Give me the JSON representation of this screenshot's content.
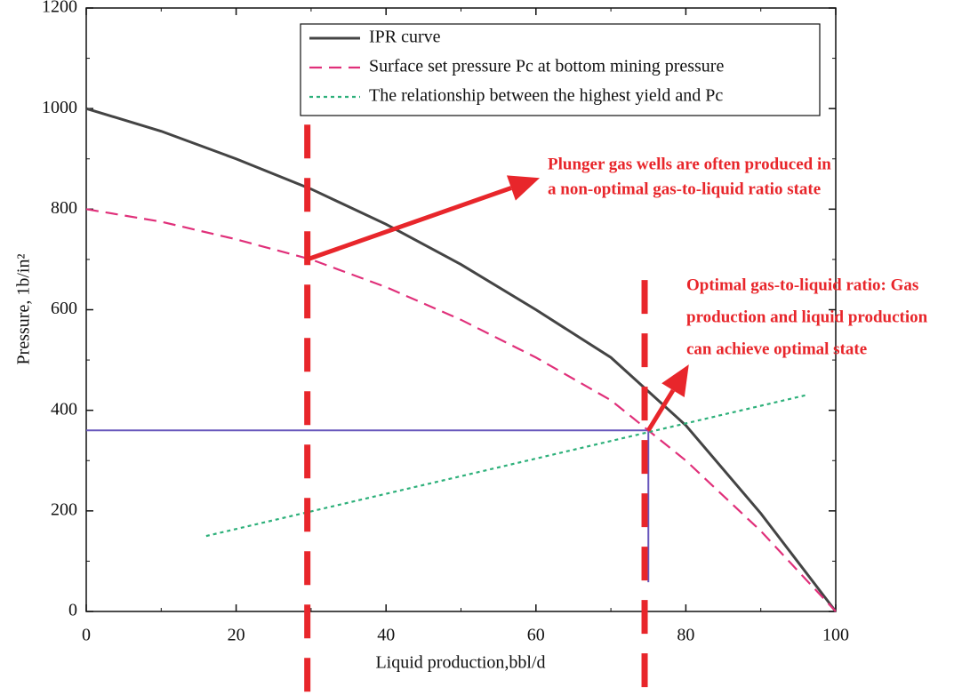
{
  "chart_data": {
    "type": "line",
    "x_label": "Liquid production,bbl/d",
    "y_label": "Pressure, 1b/in²",
    "xlim": [
      0,
      100
    ],
    "xticks": [
      0,
      20,
      40,
      60,
      80,
      100
    ],
    "ylim": [
      0,
      1200
    ],
    "yticks": [
      0,
      200,
      400,
      600,
      800,
      1000,
      1200
    ],
    "series": [
      {
        "name": "IPR curve",
        "color": "#444444",
        "style": "solid",
        "x": [
          0,
          10,
          20,
          30,
          40,
          50,
          60,
          70,
          80,
          90,
          100
        ],
        "values": [
          1000,
          955,
          900,
          840,
          770,
          690,
          600,
          505,
          370,
          195,
          0
        ]
      },
      {
        "name": "Surface set pressure Pc at bottom mining pressure",
        "color": "#e0307a",
        "style": "dashed",
        "x": [
          0,
          10,
          20,
          30,
          40,
          50,
          60,
          70,
          75,
          80,
          90,
          100
        ],
        "values": [
          800,
          775,
          740,
          700,
          645,
          580,
          505,
          420,
          360,
          300,
          160,
          0
        ]
      },
      {
        "name": "The relationship between the highest yield and Pc",
        "color": "#2db07a",
        "style": "dotted",
        "x": [
          16,
          96
        ],
        "values": [
          150,
          430
        ]
      }
    ],
    "guide_line": {
      "color": "#6655bb",
      "x": [
        0,
        75,
        75
      ],
      "values": [
        360,
        360,
        58
      ]
    },
    "markers": {
      "color": "#e8262b",
      "x": [
        29.5,
        74.5
      ],
      "y_top": [
        968,
        659
      ],
      "y_bottom": [
        -166,
        -166
      ]
    },
    "annotations": [
      {
        "text": [
          "Plunger gas wells are often produced in",
          "a non-optimal gas-to-liquid ratio state"
        ],
        "arrow_x": [
          29.5,
          60.5
        ],
        "arrow_y": [
          700,
          862
        ]
      },
      {
        "text": [
          "Optimal gas-to-liquid ratio: Gas",
          "production and liquid production",
          "can achieve optimal state"
        ],
        "arrow_x": [
          75,
          80.4
        ],
        "arrow_y": [
          360,
          491
        ]
      }
    ]
  }
}
